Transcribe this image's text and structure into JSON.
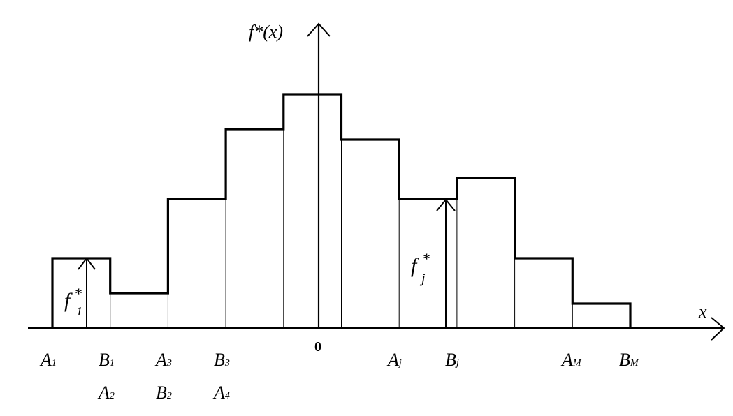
{
  "diagram": {
    "y_axis_label": "f*(x)",
    "x_axis_label": "x",
    "origin_label": "0",
    "bin_heights": [
      1.0,
      0.5,
      1.85,
      2.85,
      3.35,
      2.7,
      1.85,
      2.15,
      1.0,
      0.35,
      0.0
    ],
    "boundary_labels_row1": [
      {
        "main": "A",
        "sub": "1"
      },
      {
        "main": "B",
        "sub": "1"
      },
      {
        "main": "A",
        "sub": "3"
      },
      {
        "main": "B",
        "sub": "3"
      },
      {
        "main": "A",
        "sub": "j"
      },
      {
        "main": "B",
        "sub": "j"
      },
      {
        "main": "A",
        "sub": "M"
      },
      {
        "main": "B",
        "sub": "M"
      }
    ],
    "boundary_labels_row2": [
      {
        "main": "A",
        "sub": "2"
      },
      {
        "main": "B",
        "sub": "2"
      },
      {
        "main": "A",
        "sub": "4"
      }
    ],
    "annotations": [
      {
        "main": "f",
        "sup": "*",
        "sub": "1"
      },
      {
        "main": "f",
        "sup": "*",
        "sub": "j"
      }
    ]
  }
}
